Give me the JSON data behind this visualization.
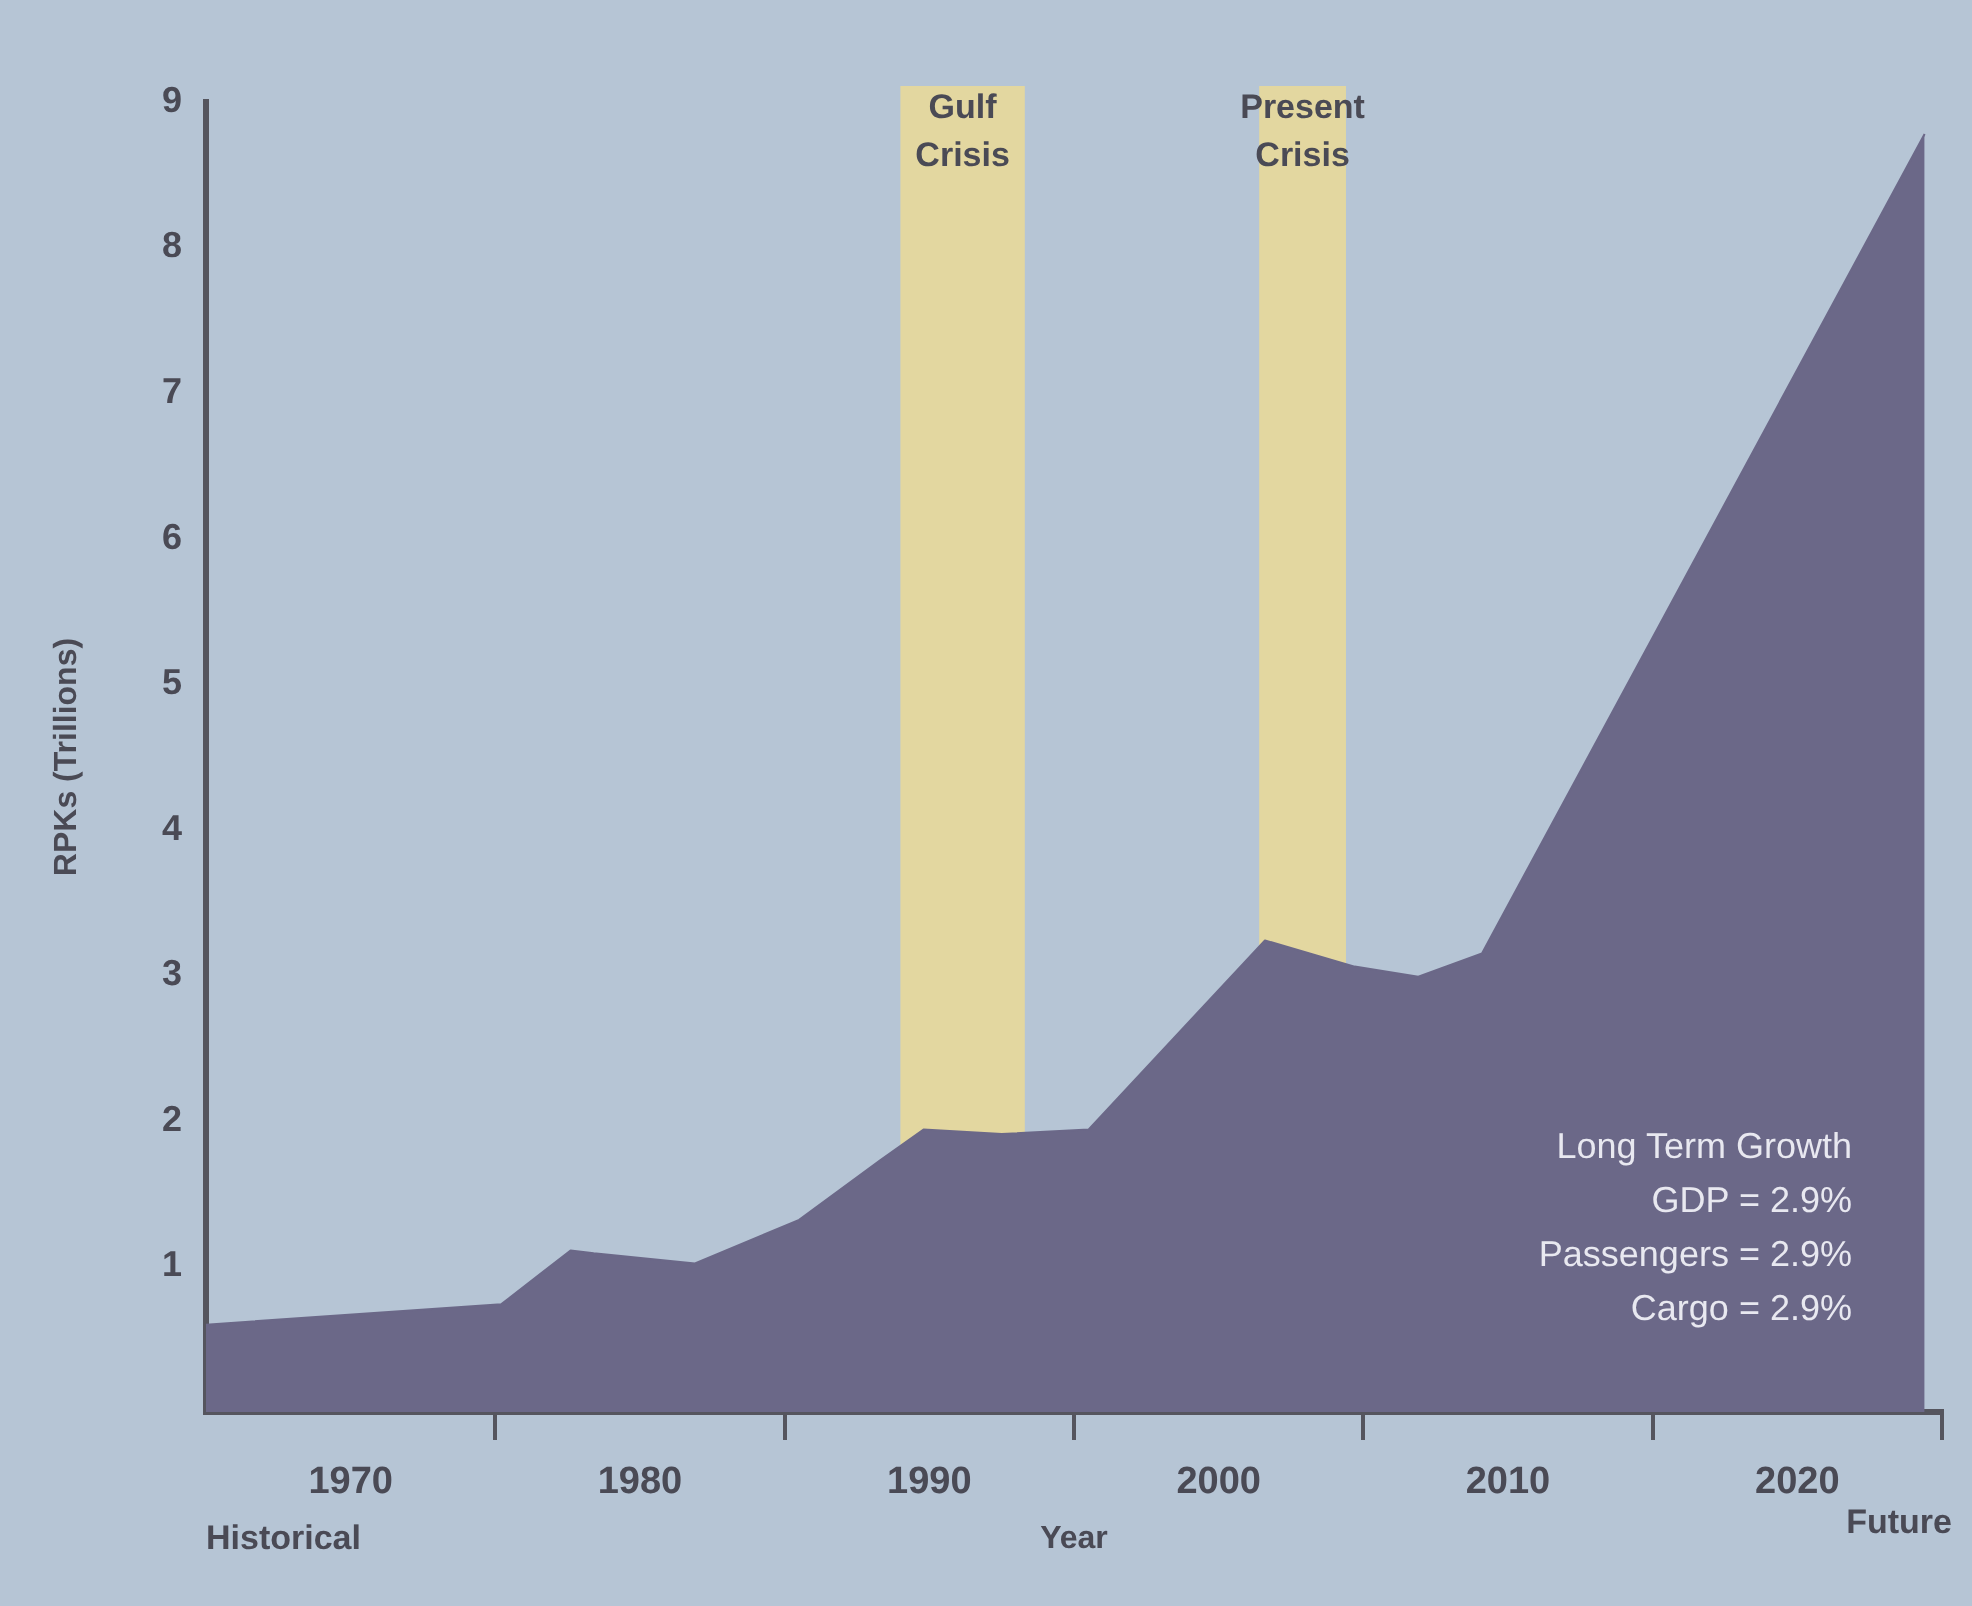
{
  "chart_data": {
    "type": "area",
    "xlabel": "Year",
    "ylabel": "RPKs (Trillions)",
    "x": [
      1965,
      1975.2,
      1977.6,
      1978.4,
      1981.9,
      1985.5,
      1988.3,
      1989.8,
      1992.5,
      1995.5,
      2001.6,
      2004.7,
      2006.9,
      2009.1,
      2024.4
    ],
    "series": [
      {
        "color": "#6b6888",
        "values": [
          0.6,
          0.74,
          1.11,
          1.09,
          1.02,
          1.32,
          1.73,
          1.94,
          1.91,
          1.94,
          3.24,
          3.06,
          2.99,
          3.15,
          8.78
        ]
      }
    ],
    "xlim": [
      1965,
      2025
    ],
    "xticks": [
      {
        "value": 1970,
        "label": "1970"
      },
      {
        "value": 1975,
        "label": null
      },
      {
        "value": 1980,
        "label": "1980"
      },
      {
        "value": 1985,
        "label": null
      },
      {
        "value": 1990,
        "label": "1990"
      },
      {
        "value": 1995,
        "label": null
      },
      {
        "value": 2000,
        "label": "2000"
      },
      {
        "value": 2005,
        "label": null
      },
      {
        "value": 2010,
        "label": "2010"
      },
      {
        "value": 2015,
        "label": null
      },
      {
        "value": 2020,
        "label": "2020"
      },
      {
        "value": 2025,
        "label": null
      }
    ],
    "ylim": [
      0,
      9
    ],
    "yticks": [
      1,
      2,
      3,
      4,
      5,
      6,
      7,
      8,
      9
    ],
    "grid": false,
    "legend": false,
    "bands": [
      {
        "axis": "x",
        "from": 1989.0,
        "to": 1993.3,
        "label": "Gulf Crisis",
        "color": "#e3d7a0"
      },
      {
        "axis": "x",
        "from": 2001.4,
        "to": 2004.4,
        "label": "Present Crisis",
        "color": "#e3d7a0"
      }
    ],
    "annotations": [
      "Historical",
      "Future",
      "Long Term Growth",
      "GDP = 2.9%",
      "Passengers = 2.9%",
      "Cargo = 2.9%"
    ]
  }
}
